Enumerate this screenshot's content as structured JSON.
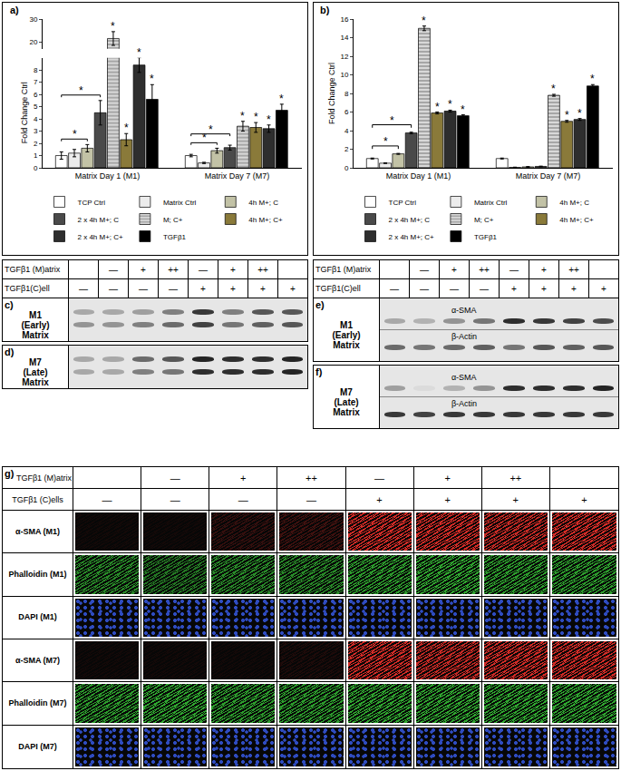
{
  "chart_data": [
    {
      "panel": "a)",
      "type": "bar",
      "ylabel": "Fold Change Ctrl",
      "categories": [
        "Matrix Day 1 (M1)",
        "Matrix Day 7 (M7)"
      ],
      "ylim": [
        0,
        30
      ],
      "yticks": [
        0,
        1,
        2,
        3,
        4,
        5,
        6,
        7,
        8,
        20,
        30
      ],
      "grid": false,
      "legend": "bottom",
      "series": [
        {
          "name": "TCP Ctrl",
          "color": "#ffffff",
          "values": [
            1.0,
            1.0
          ],
          "errors": [
            0.3,
            0.1
          ],
          "significance": [
            null,
            null
          ]
        },
        {
          "name": "Matrix Ctrl",
          "color": "#ececec",
          "values": [
            1.2,
            0.4
          ],
          "errors": [
            0.3,
            0.05
          ],
          "significance": [
            null,
            null
          ]
        },
        {
          "name": "4h M+; C",
          "color": "#c2c2a6",
          "values": [
            1.6,
            1.4
          ],
          "errors": [
            0.3,
            0.2
          ],
          "significance": [
            null,
            null
          ]
        },
        {
          "name": "2 x 4h M+; C",
          "color": "#4a4a4a",
          "values": [
            4.5,
            1.65
          ],
          "errors": [
            1.0,
            0.2
          ],
          "significance": [
            null,
            null
          ]
        },
        {
          "name": "M; C+",
          "color": "#a6a6a6",
          "marker": "striped",
          "values": [
            21.5,
            3.4
          ],
          "errors": [
            3.0,
            0.4
          ],
          "significance": [
            "*",
            "*"
          ]
        },
        {
          "name": "4h M+; C+",
          "color": "#8a7a3a",
          "values": [
            2.3,
            3.3
          ],
          "errors": [
            0.5,
            0.4
          ],
          "significance": [
            "*",
            "*"
          ]
        },
        {
          "name": "2 x 4h M+; C+",
          "color": "#2e2e2e",
          "values": [
            8.4,
            3.2
          ],
          "errors": [
            0.6,
            0.3
          ],
          "significance": [
            "*",
            "*"
          ]
        },
        {
          "name": "TGFβ1",
          "color": "#000000",
          "values": [
            5.6,
            4.7
          ],
          "errors": [
            1.2,
            0.5
          ],
          "significance": [
            "*",
            "*"
          ]
        }
      ],
      "comparisons": [
        {
          "category": "Matrix Day 1 (M1)",
          "from": "TCP Ctrl",
          "to": "4h M+; C",
          "text": "*"
        },
        {
          "category": "Matrix Day 1 (M1)",
          "from": "TCP Ctrl",
          "to": "2 x 4h M+; C",
          "text": "*"
        },
        {
          "category": "Matrix Day 7 (M7)",
          "from": "TCP Ctrl",
          "to": "4h M+; C",
          "text": "*"
        },
        {
          "category": "Matrix Day 7 (M7)",
          "from": "TCP Ctrl",
          "to": "2 x 4h M+; C",
          "text": "*"
        }
      ]
    },
    {
      "panel": "b)",
      "type": "bar",
      "ylabel": "Fold Change Ctrl",
      "categories": [
        "Matrix Day 1 (M1)",
        "Matrix Day 7 (M7)"
      ],
      "ylim": [
        0,
        16
      ],
      "yticks": [
        0,
        2,
        4,
        6,
        8,
        10,
        12,
        14,
        16
      ],
      "grid": false,
      "legend": "bottom",
      "series": [
        {
          "name": "TCP Ctrl",
          "color": "#ffffff",
          "values": [
            1.0,
            1.0
          ],
          "errors": [
            0.05,
            0.05
          ],
          "significance": [
            null,
            null
          ]
        },
        {
          "name": "Matrix Ctrl",
          "color": "#ececec",
          "values": [
            0.5,
            0.05
          ],
          "errors": [
            0.03,
            0.02
          ],
          "significance": [
            null,
            null
          ]
        },
        {
          "name": "4h M+; C",
          "color": "#c2c2a6",
          "values": [
            1.5,
            0.1
          ],
          "errors": [
            0.05,
            0.03
          ],
          "significance": [
            null,
            null
          ]
        },
        {
          "name": "2 x 4h M+; C",
          "color": "#4a4a4a",
          "values": [
            3.75,
            0.15
          ],
          "errors": [
            0.08,
            0.03
          ],
          "significance": [
            null,
            null
          ]
        },
        {
          "name": "M; C+",
          "color": "#a6a6a6",
          "marker": "striped",
          "values": [
            15.0,
            7.8
          ],
          "errors": [
            0.25,
            0.1
          ],
          "significance": [
            "*",
            "*"
          ]
        },
        {
          "name": "4h M+; C+",
          "color": "#8a7a3a",
          "values": [
            5.9,
            5.0
          ],
          "errors": [
            0.1,
            0.1
          ],
          "significance": [
            "*",
            "*"
          ]
        },
        {
          "name": "2 x 4h M+; C+",
          "color": "#2e2e2e",
          "values": [
            6.1,
            5.2
          ],
          "errors": [
            0.1,
            0.1
          ],
          "significance": [
            "*",
            "*"
          ]
        },
        {
          "name": "TGFβ1",
          "color": "#000000",
          "values": [
            5.6,
            8.8
          ],
          "errors": [
            0.1,
            0.15
          ],
          "significance": [
            "*",
            "*"
          ]
        }
      ],
      "comparisons": [
        {
          "category": "Matrix Day 1 (M1)",
          "from": "TCP Ctrl",
          "to": "4h M+; C",
          "text": "*"
        },
        {
          "category": "Matrix Day 1 (M1)",
          "from": "TCP Ctrl",
          "to": "2 x 4h M+; C",
          "text": "*"
        }
      ]
    }
  ],
  "blots": [
    {
      "header": [
        {
          "label": "TGFβ1 (M)atrix",
          "lanes": [
            null,
            "—",
            "+",
            "++",
            "—",
            "+",
            "++",
            null
          ]
        },
        {
          "label": "TGFβ1(C)ell",
          "lanes": [
            "—",
            "—",
            "—",
            "—",
            "+",
            "+",
            "+",
            "+"
          ]
        }
      ],
      "panels": [
        {
          "panel": "c)",
          "label": [
            "M1",
            "(Early)",
            "Matrix"
          ],
          "strips": [
            {
              "name": null,
              "bands": [
                [
                  0.3,
                  0.3,
                  0.35,
                  0.5,
                  0.85,
                  0.5,
                  0.7,
                  0.7
                ],
                [
                  0.4,
                  0.4,
                  0.5,
                  0.6,
                  0.8,
                  0.55,
                  0.65,
                  0.7
                ]
              ]
            }
          ]
        },
        {
          "panel": "d)",
          "label": [
            "M7",
            "(Late)",
            "Matrix"
          ],
          "strips": [
            {
              "name": null,
              "bands": [
                [
                  0.3,
                  0.3,
                  0.6,
                  0.7,
                  0.95,
                  0.9,
                  0.9,
                  0.95
                ],
                [
                  0.3,
                  0.3,
                  0.5,
                  0.55,
                  0.9,
                  0.9,
                  0.9,
                  0.95
                ]
              ]
            }
          ]
        }
      ]
    },
    {
      "header": [
        {
          "label": "TGFβ1 (M)atrix",
          "lanes": [
            null,
            "—",
            "+",
            "++",
            "—",
            "+",
            "++",
            null
          ]
        },
        {
          "label": "TGFβ1(C)ell",
          "lanes": [
            "—",
            "—",
            "—",
            "—",
            "+",
            "+",
            "+",
            "+"
          ]
        }
      ],
      "panels": [
        {
          "panel": "e)",
          "label": [
            "M1",
            "(Early)",
            "Matrix"
          ],
          "strips": [
            {
              "name": "α-SMA",
              "bands": [
                [
                  0.3,
                  0.25,
                  0.4,
                  0.55,
                  0.9,
                  0.85,
                  0.8,
                  0.75
                ]
              ]
            },
            {
              "name": "β-Actin",
              "bands": [
                [
                  0.6,
                  0.55,
                  0.6,
                  0.65,
                  0.55,
                  0.7,
                  0.65,
                  0.7
                ]
              ]
            }
          ]
        },
        {
          "panel": "f)",
          "label": [
            "M7",
            "(Late)",
            "Matrix"
          ],
          "strips": [
            {
              "name": "α-SMA",
              "bands": [
                [
                  0.35,
                  0.05,
                  0.25,
                  0.4,
                  0.9,
                  0.9,
                  0.9,
                  0.95
                ]
              ]
            },
            {
              "name": "β-Actin",
              "bands": [
                [
                  0.85,
                  0.8,
                  0.85,
                  0.85,
                  0.85,
                  0.85,
                  0.85,
                  0.85
                ]
              ]
            }
          ]
        }
      ]
    }
  ],
  "micrographs": {
    "panel": "g)",
    "header": [
      {
        "label": "TGFβ1 (M)atrix",
        "lanes": [
          null,
          "—",
          "+",
          "++",
          "—",
          "+",
          "++",
          null
        ]
      },
      {
        "label": "TGFβ1 (C)ells",
        "lanes": [
          "—",
          "—",
          "—",
          "—",
          "+",
          "+",
          "+",
          "+"
        ]
      }
    ],
    "rows": [
      {
        "label": "α-SMA (M1)",
        "color": "#e8302a",
        "marker": "fibers",
        "intensity": [
          0.05,
          0.05,
          0.2,
          0.25,
          0.9,
          0.9,
          0.85,
          0.9
        ]
      },
      {
        "label": "Phalloidin (M1)",
        "color": "#36c236",
        "marker": "fibers",
        "intensity": [
          0.7,
          0.6,
          0.7,
          0.7,
          0.8,
          0.85,
          0.8,
          0.8
        ]
      },
      {
        "label": "DAPI (M1)",
        "color": "#3a5ef0",
        "marker": "nuclei",
        "intensity": [
          0.8,
          0.8,
          0.8,
          0.8,
          0.8,
          0.8,
          0.8,
          0.8
        ]
      },
      {
        "label": "α-SMA (M7)",
        "color": "#e8302a",
        "marker": "fibers",
        "intensity": [
          0.05,
          0.05,
          0.05,
          0.1,
          0.9,
          0.85,
          0.9,
          0.9
        ]
      },
      {
        "label": "Phalloidin (M7)",
        "color": "#36c236",
        "marker": "fibers",
        "intensity": [
          0.8,
          0.85,
          0.8,
          0.8,
          0.85,
          0.85,
          0.85,
          0.85
        ]
      },
      {
        "label": "DAPI (M7)",
        "color": "#3a5ef0",
        "marker": "nuclei",
        "intensity": [
          0.8,
          0.8,
          0.8,
          0.8,
          0.8,
          0.8,
          0.8,
          0.8
        ]
      }
    ]
  }
}
